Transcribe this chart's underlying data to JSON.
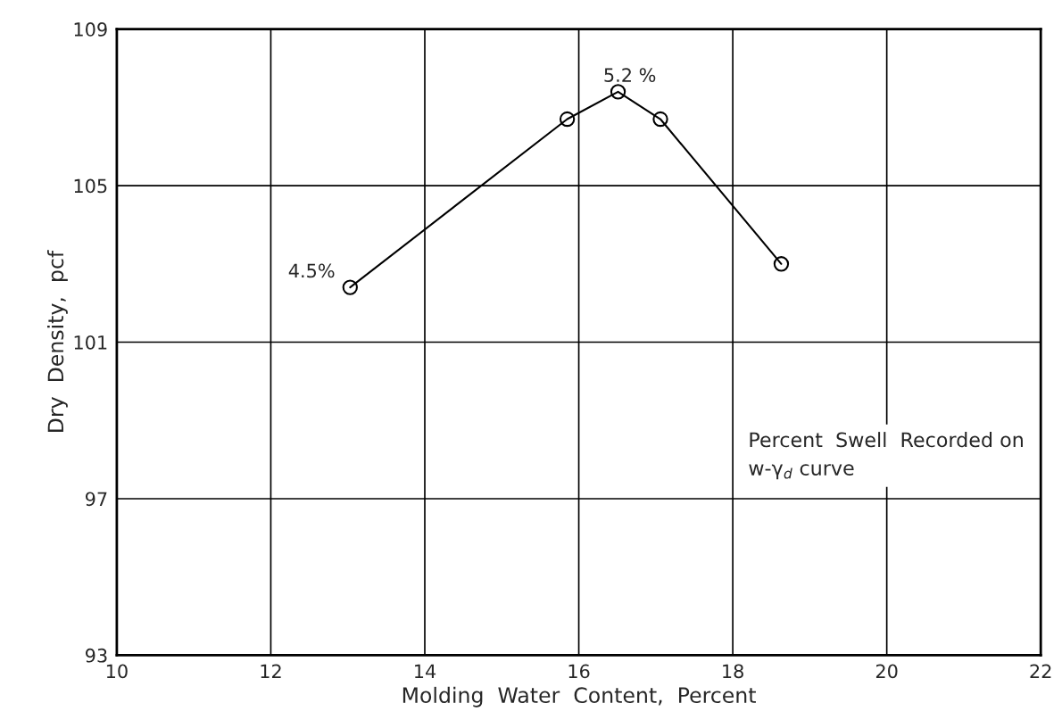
{
  "chart_data": {
    "type": "line",
    "xlabel": "Molding  Water  Content,  Percent",
    "ylabel": "Dry  Density,  pcf",
    "x": [
      13.03,
      15.85,
      16.51,
      17.06,
      18.63
    ],
    "series": [
      {
        "color": "#000000",
        "values": [
          102.4,
          106.7,
          107.4,
          106.7,
          103.0
        ]
      }
    ],
    "xlim": [
      10,
      22
    ],
    "xticks": [
      10,
      12,
      14,
      16,
      18,
      20,
      22
    ],
    "ylim": [
      93,
      109
    ],
    "yticks": [
      93,
      97,
      101,
      105,
      109
    ],
    "grid": true,
    "marker": "circle",
    "line_style": "solid",
    "annotations": [
      {
        "text": "4.5%",
        "x": 13.03,
        "y": 102.4
      },
      {
        "text": "5.2 %",
        "x": 16.51,
        "y": 107.4
      },
      "Percent  Swell  Recorded on\nw-γ$_{d}$ curve"
    ]
  }
}
